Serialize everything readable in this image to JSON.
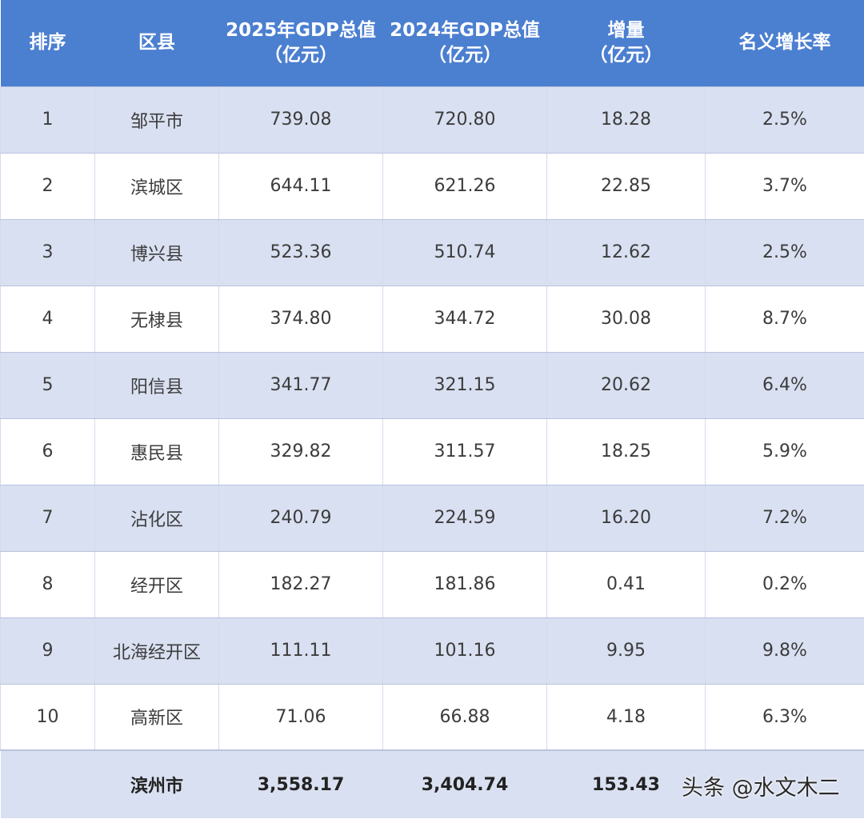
{
  "table": {
    "headers": [
      [
        "排序"
      ],
      [
        "区县"
      ],
      [
        "2025年GDP总值",
        "（亿元）"
      ],
      [
        "2024年GDP总值",
        "（亿元）"
      ],
      [
        "增量",
        "（亿元）"
      ],
      [
        "名义增长率"
      ]
    ],
    "rows": [
      [
        "1",
        "邹平市",
        "739.08",
        "720.80",
        "18.28",
        "2.5%"
      ],
      [
        "2",
        "滨城区",
        "644.11",
        "621.26",
        "22.85",
        "3.7%"
      ],
      [
        "3",
        "博兴县",
        "523.36",
        "510.74",
        "12.62",
        "2.5%"
      ],
      [
        "4",
        "无棣县",
        "374.80",
        "344.72",
        "30.08",
        "8.7%"
      ],
      [
        "5",
        "阳信县",
        "341.77",
        "321.15",
        "20.62",
        "6.4%"
      ],
      [
        "6",
        "惠民县",
        "329.82",
        "311.57",
        "18.25",
        "5.9%"
      ],
      [
        "7",
        "沾化区",
        "240.79",
        "224.59",
        "16.20",
        "7.2%"
      ],
      [
        "8",
        "经开区",
        "182.27",
        "181.86",
        "0.41",
        "0.2%"
      ],
      [
        "9",
        "北海经开区",
        "111.11",
        "101.16",
        "9.95",
        "9.8%"
      ],
      [
        "10",
        "高新区",
        "71.06",
        "66.88",
        "4.18",
        "6.3%"
      ]
    ],
    "total": [
      "",
      "滨州市",
      "3,558.17",
      "3,404.74",
      "153.43",
      ""
    ]
  },
  "watermark": "头条 @水文木二",
  "colors": {
    "header_bg": "#4b7fd0",
    "band_row_bg": "#d9e0f1",
    "plain_row_bg": "#ffffff"
  }
}
